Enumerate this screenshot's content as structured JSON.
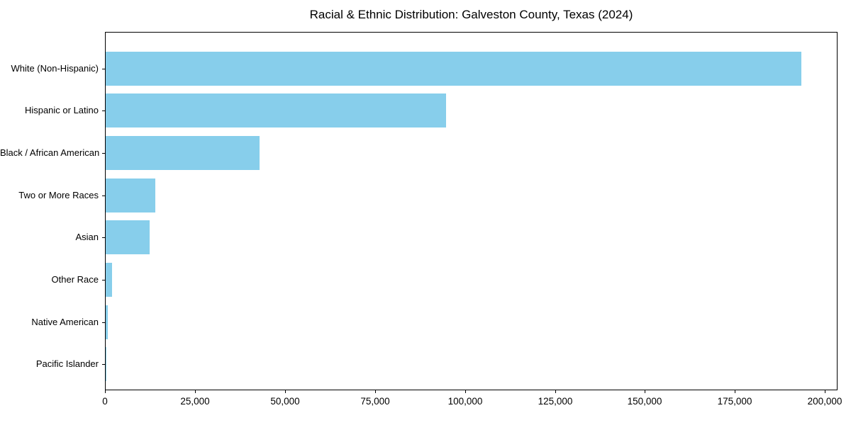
{
  "chart_data": {
    "type": "bar",
    "orientation": "horizontal",
    "title": "Racial & Ethnic Distribution: Galveston County, Texas (2024)",
    "xlabel": "",
    "ylabel": "",
    "categories": [
      "White (Non-Hispanic)",
      "Hispanic or Latino",
      "Black / African American",
      "Two or More Races",
      "Asian",
      "Other Race",
      "Native American",
      "Pacific Islander"
    ],
    "values": [
      193700,
      94800,
      42800,
      13800,
      12200,
      1800,
      600,
      200
    ],
    "xlim": [
      0,
      203500
    ],
    "x_ticks": [
      0,
      25000,
      50000,
      75000,
      100000,
      125000,
      150000,
      175000,
      200000
    ],
    "x_tick_labels": [
      "0",
      "25,000",
      "50,000",
      "75,000",
      "100,000",
      "125,000",
      "150,000",
      "175,000",
      "200,000"
    ],
    "bar_color": "#87CEEB",
    "spine_color": "#000000",
    "grid": false,
    "legend": null
  }
}
